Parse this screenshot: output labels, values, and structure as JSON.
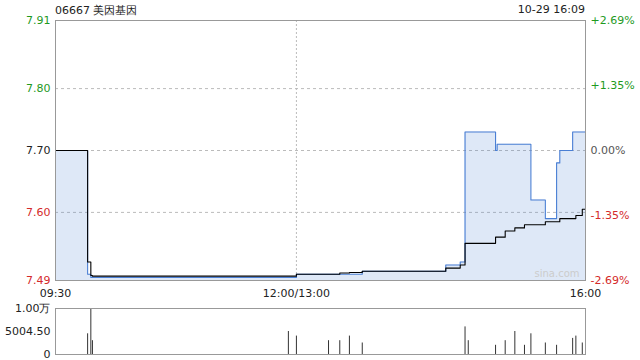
{
  "chart_data": {
    "type": "line",
    "title": "06667 美因基因",
    "datetime": "10-29 16:09",
    "watermark": "sina.com",
    "x": [
      0,
      20,
      22,
      23,
      145,
      150,
      170,
      177,
      183,
      191,
      243,
      252,
      255,
      257,
      274,
      275,
      280,
      286,
      292,
      296,
      305,
      312,
      314,
      322,
      324,
      328,
      330
    ],
    "xlim": [
      0,
      330
    ],
    "xticks": [
      {
        "value": 0,
        "label": "09:30"
      },
      {
        "value": 150,
        "label": "12:00/13:00"
      },
      {
        "value": 330,
        "label": "16:00"
      }
    ],
    "ylim": [
      7.49,
      7.91
    ],
    "yticks": [
      7.49,
      {
        "value": 7.6,
        "label": "7.60"
      },
      {
        "value": 7.7,
        "label": "7.70"
      },
      {
        "value": 7.8,
        "label": "7.80"
      },
      7.91
    ],
    "y2lim": [
      -2.69,
      2.69
    ],
    "y2ticks": [
      {
        "value": -2.69,
        "label": "-2.69%"
      },
      {
        "value": -1.35,
        "label": "-1.35%"
      },
      {
        "value": 0,
        "label": "0.00%"
      },
      {
        "value": 1.35,
        "label": "+1.35%"
      },
      {
        "value": 2.69,
        "label": "+2.69%"
      }
    ],
    "grid": true,
    "series": [
      {
        "type": "area",
        "color": "#4a7fd4",
        "values": [
          7.7,
          7.5,
          7.495,
          7.495,
          7.495,
          7.5,
          7.5,
          7.5,
          7.5,
          7.505,
          7.515,
          7.52,
          7.73,
          7.73,
          7.7,
          7.71,
          7.71,
          7.71,
          7.71,
          7.62,
          7.59,
          7.68,
          7.7,
          7.73,
          7.73,
          7.73,
          7.73
        ]
      },
      {
        "type": "line",
        "color": "#000000",
        "values": [
          7.7,
          7.52,
          7.498,
          7.497,
          7.497,
          7.5,
          7.5,
          7.502,
          7.503,
          7.505,
          7.51,
          7.515,
          7.55,
          7.55,
          7.56,
          7.56,
          7.57,
          7.575,
          7.58,
          7.58,
          7.585,
          7.585,
          7.59,
          7.59,
          7.595,
          7.605,
          7.605
        ]
      }
    ],
    "volume": {
      "color": "#333333",
      "values": [
        0,
        4500,
        10000,
        3000,
        5000,
        4000,
        3000,
        3000,
        4000,
        2500,
        0,
        0,
        6000,
        3000,
        2000,
        0,
        3000,
        5000,
        2000,
        4500,
        2500,
        2000,
        0,
        3500,
        4000,
        2500,
        0
      ],
      "ylim": [
        0,
        10000
      ],
      "yticks": [
        0,
        {
          "value": 5004.5,
          "label": "5004.50"
        },
        {
          "value": 10000,
          "label": "1.00万"
        }
      ]
    }
  }
}
